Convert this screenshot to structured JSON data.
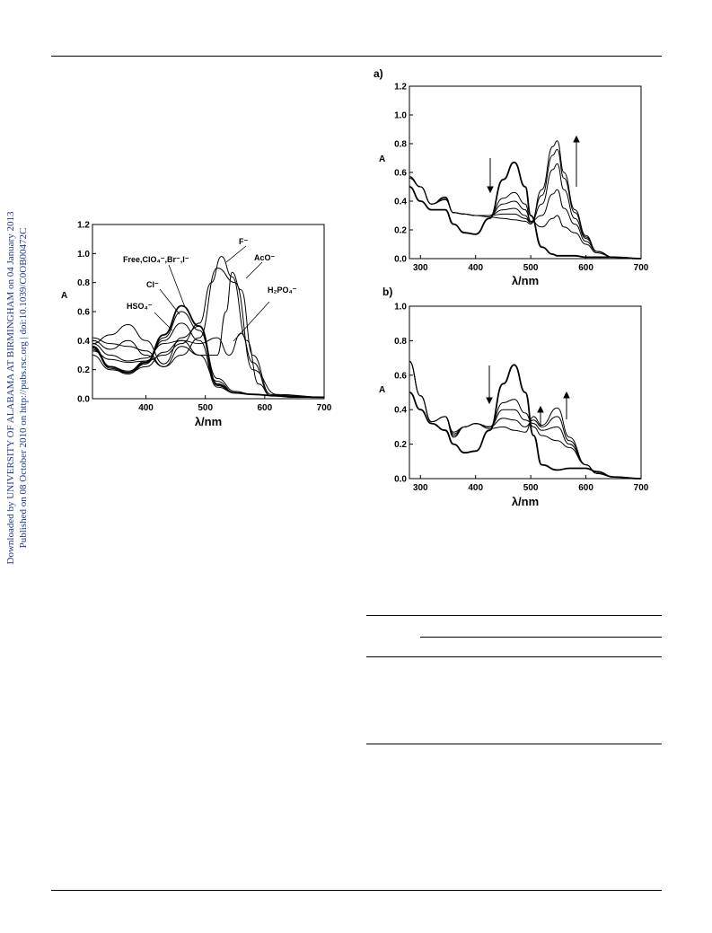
{
  "sidebar": {
    "line1": "Downloaded by UNIVERSITY OF ALABAMA AT BIRMINGHAM on 04 January 2013",
    "line2": "Published on 08 October 2010 on http://pubs.rsc.org | doi:10.1039/C0OB00472C"
  },
  "chart_data": [
    {
      "type": "line",
      "xlabel": "λ/nm",
      "ylabel": "A",
      "xlim": [
        310,
        700
      ],
      "ylim": [
        0,
        1.2
      ],
      "xticks": [
        400,
        500,
        600,
        700
      ],
      "yticks": [
        0.0,
        0.2,
        0.4,
        0.6,
        0.8,
        1.0,
        1.2
      ],
      "annotations": [
        "F⁻",
        "AcO⁻",
        "Free,ClO₄⁻,Br⁻,I⁻",
        "Cl⁻",
        "H₂PO₄⁻",
        "HSO₄⁻"
      ],
      "series": [
        {
          "x": [
            310,
            340,
            370,
            400,
            430,
            460,
            490,
            520,
            550,
            580,
            620,
            700
          ],
          "values": [
            0.36,
            0.22,
            0.18,
            0.25,
            0.44,
            0.64,
            0.5,
            0.1,
            0.04,
            0.03,
            0.02,
            0.01
          ]
        },
        {
          "x": [
            310,
            340,
            370,
            400,
            430,
            460,
            490,
            520,
            550,
            580,
            620,
            700
          ],
          "values": [
            0.35,
            0.21,
            0.17,
            0.24,
            0.42,
            0.6,
            0.47,
            0.09,
            0.04,
            0.03,
            0.02,
            0.01
          ]
        },
        {
          "x": [
            310,
            340,
            370,
            400,
            430,
            460,
            490,
            520,
            550,
            580,
            620,
            700
          ],
          "values": [
            0.34,
            0.22,
            0.19,
            0.26,
            0.4,
            0.52,
            0.4,
            0.08,
            0.04,
            0.03,
            0.02,
            0.01
          ]
        },
        {
          "x": [
            310,
            340,
            370,
            400,
            430,
            460,
            490,
            520,
            550,
            580,
            620,
            700
          ],
          "values": [
            0.38,
            0.44,
            0.51,
            0.4,
            0.24,
            0.42,
            0.5,
            0.14,
            0.05,
            0.03,
            0.02,
            0.01
          ]
        },
        {
          "x": [
            310,
            340,
            370,
            400,
            430,
            460,
            490,
            520,
            550,
            580,
            620,
            700
          ],
          "values": [
            0.42,
            0.38,
            0.36,
            0.33,
            0.22,
            0.36,
            0.3,
            0.12,
            0.04,
            0.03,
            0.02,
            0.01
          ]
        },
        {
          "x": [
            310,
            340,
            370,
            400,
            430,
            460,
            490,
            520,
            550,
            580,
            620,
            700
          ],
          "values": [
            0.4,
            0.34,
            0.4,
            0.3,
            0.22,
            0.3,
            0.42,
            0.9,
            0.8,
            0.2,
            0.03,
            0.01
          ]
        },
        {
          "x": [
            310,
            340,
            370,
            400,
            430,
            460,
            490,
            510,
            527,
            545,
            570,
            590,
            610,
            650,
            700
          ],
          "values": [
            0.33,
            0.27,
            0.25,
            0.26,
            0.3,
            0.38,
            0.52,
            0.8,
            0.98,
            0.84,
            0.4,
            0.1,
            0.02,
            0.01,
            0.01
          ]
        },
        {
          "x": [
            310,
            340,
            370,
            400,
            430,
            460,
            490,
            520,
            535,
            545,
            560,
            580,
            610,
            650,
            700
          ],
          "values": [
            0.3,
            0.2,
            0.18,
            0.22,
            0.32,
            0.4,
            0.3,
            0.3,
            0.6,
            0.87,
            0.75,
            0.3,
            0.03,
            0.01,
            0.01
          ]
        },
        {
          "x": [
            310,
            340,
            370,
            400,
            430,
            460,
            490,
            520,
            540,
            560,
            580,
            610,
            650,
            700
          ],
          "values": [
            0.38,
            0.3,
            0.26,
            0.28,
            0.38,
            0.4,
            0.38,
            0.42,
            0.3,
            0.45,
            0.25,
            0.02,
            0.01,
            0.01
          ]
        }
      ]
    },
    {
      "type": "line",
      "panel_label": "a)",
      "xlabel": "λ/nm",
      "ylabel": "A",
      "xlim": [
        280,
        700
      ],
      "ylim": [
        0,
        1.2
      ],
      "xticks": [
        300,
        400,
        500,
        600,
        700
      ],
      "yticks": [
        0.0,
        0.2,
        0.4,
        0.6,
        0.8,
        1.0,
        1.2
      ],
      "series": [
        {
          "x": [
            280,
            300,
            320,
            345,
            360,
            380,
            400,
            425,
            450,
            470,
            490,
            500,
            520,
            540,
            548,
            560,
            580,
            600,
            620,
            650,
            700
          ],
          "values": [
            0.5,
            0.4,
            0.34,
            0.34,
            0.24,
            0.18,
            0.17,
            0.28,
            0.55,
            0.67,
            0.5,
            0.3,
            0.08,
            0.03,
            0.02,
            0.02,
            0.02,
            0.01,
            0.01,
            0.01,
            0.0
          ]
        },
        {
          "x": [
            280,
            300,
            320,
            345,
            360,
            380,
            400,
            425,
            450,
            470,
            490,
            500,
            520,
            540,
            548,
            560,
            580,
            600,
            620,
            650,
            700
          ],
          "values": [
            0.56,
            0.5,
            0.38,
            0.41,
            0.32,
            0.31,
            0.3,
            0.3,
            0.42,
            0.46,
            0.38,
            0.26,
            0.22,
            0.28,
            0.3,
            0.22,
            0.18,
            0.1,
            0.04,
            0.01,
            0.0
          ]
        },
        {
          "x": [
            280,
            300,
            320,
            345,
            360,
            380,
            400,
            425,
            450,
            470,
            490,
            500,
            520,
            540,
            548,
            560,
            580,
            600,
            620,
            650,
            700
          ],
          "values": [
            0.57,
            0.5,
            0.38,
            0.42,
            0.32,
            0.31,
            0.3,
            0.3,
            0.38,
            0.4,
            0.34,
            0.26,
            0.3,
            0.45,
            0.48,
            0.35,
            0.24,
            0.12,
            0.05,
            0.01,
            0.0
          ]
        },
        {
          "x": [
            280,
            300,
            320,
            345,
            360,
            380,
            400,
            425,
            450,
            470,
            490,
            500,
            520,
            540,
            548,
            560,
            580,
            600,
            620,
            650,
            700
          ],
          "values": [
            0.57,
            0.5,
            0.38,
            0.42,
            0.32,
            0.31,
            0.3,
            0.3,
            0.34,
            0.35,
            0.3,
            0.25,
            0.38,
            0.62,
            0.66,
            0.48,
            0.28,
            0.14,
            0.05,
            0.01,
            0.0
          ]
        },
        {
          "x": [
            280,
            300,
            320,
            345,
            360,
            380,
            400,
            425,
            450,
            470,
            490,
            500,
            520,
            540,
            548,
            560,
            580,
            600,
            620,
            650,
            700
          ],
          "values": [
            0.57,
            0.5,
            0.38,
            0.42,
            0.32,
            0.31,
            0.3,
            0.3,
            0.31,
            0.31,
            0.28,
            0.25,
            0.44,
            0.72,
            0.76,
            0.56,
            0.32,
            0.15,
            0.05,
            0.01,
            0.0
          ]
        },
        {
          "x": [
            280,
            300,
            320,
            345,
            360,
            380,
            400,
            425,
            450,
            470,
            490,
            500,
            520,
            540,
            548,
            560,
            580,
            600,
            620,
            650,
            700
          ],
          "values": [
            0.57,
            0.5,
            0.38,
            0.43,
            0.32,
            0.31,
            0.3,
            0.29,
            0.28,
            0.27,
            0.26,
            0.24,
            0.48,
            0.78,
            0.82,
            0.6,
            0.34,
            0.16,
            0.05,
            0.01,
            0.0
          ]
        }
      ]
    },
    {
      "type": "line",
      "panel_label": "b)",
      "xlabel": "λ/nm",
      "ylabel": "A",
      "xlim": [
        280,
        700
      ],
      "ylim": [
        0,
        1.0
      ],
      "xticks": [
        300,
        400,
        500,
        600,
        700
      ],
      "yticks": [
        0.0,
        0.2,
        0.4,
        0.6,
        0.8,
        1.0
      ],
      "series": [
        {
          "x": [
            280,
            300,
            320,
            345,
            360,
            380,
            400,
            425,
            450,
            470,
            490,
            505,
            520,
            548,
            570,
            600,
            620,
            650,
            700
          ],
          "values": [
            0.5,
            0.4,
            0.32,
            0.28,
            0.2,
            0.15,
            0.16,
            0.28,
            0.55,
            0.66,
            0.5,
            0.25,
            0.08,
            0.05,
            0.06,
            0.06,
            0.04,
            0.01,
            0.0
          ]
        },
        {
          "x": [
            280,
            300,
            320,
            345,
            360,
            380,
            400,
            425,
            450,
            470,
            490,
            505,
            520,
            548,
            570,
            600,
            620,
            650,
            700
          ],
          "values": [
            0.68,
            0.48,
            0.33,
            0.36,
            0.27,
            0.3,
            0.32,
            0.3,
            0.44,
            0.46,
            0.38,
            0.3,
            0.25,
            0.22,
            0.18,
            0.08,
            0.03,
            0.01,
            0.0
          ]
        },
        {
          "x": [
            280,
            300,
            320,
            345,
            360,
            380,
            400,
            425,
            450,
            470,
            490,
            505,
            520,
            548,
            570,
            600,
            620,
            650,
            700
          ],
          "values": [
            0.68,
            0.48,
            0.33,
            0.36,
            0.26,
            0.3,
            0.32,
            0.3,
            0.4,
            0.4,
            0.34,
            0.32,
            0.28,
            0.3,
            0.2,
            0.08,
            0.03,
            0.01,
            0.0
          ]
        },
        {
          "x": [
            280,
            300,
            320,
            345,
            360,
            380,
            400,
            425,
            450,
            470,
            490,
            505,
            520,
            548,
            570,
            600,
            620,
            650,
            700
          ],
          "values": [
            0.68,
            0.48,
            0.33,
            0.36,
            0.25,
            0.3,
            0.32,
            0.3,
            0.35,
            0.34,
            0.3,
            0.34,
            0.3,
            0.36,
            0.22,
            0.08,
            0.03,
            0.01,
            0.0
          ]
        },
        {
          "x": [
            280,
            300,
            320,
            345,
            360,
            380,
            400,
            425,
            450,
            470,
            490,
            505,
            520,
            548,
            570,
            600,
            620,
            650,
            700
          ],
          "values": [
            0.68,
            0.48,
            0.33,
            0.36,
            0.24,
            0.3,
            0.32,
            0.29,
            0.3,
            0.28,
            0.27,
            0.36,
            0.31,
            0.41,
            0.24,
            0.08,
            0.03,
            0.01,
            0.0
          ]
        }
      ]
    }
  ]
}
